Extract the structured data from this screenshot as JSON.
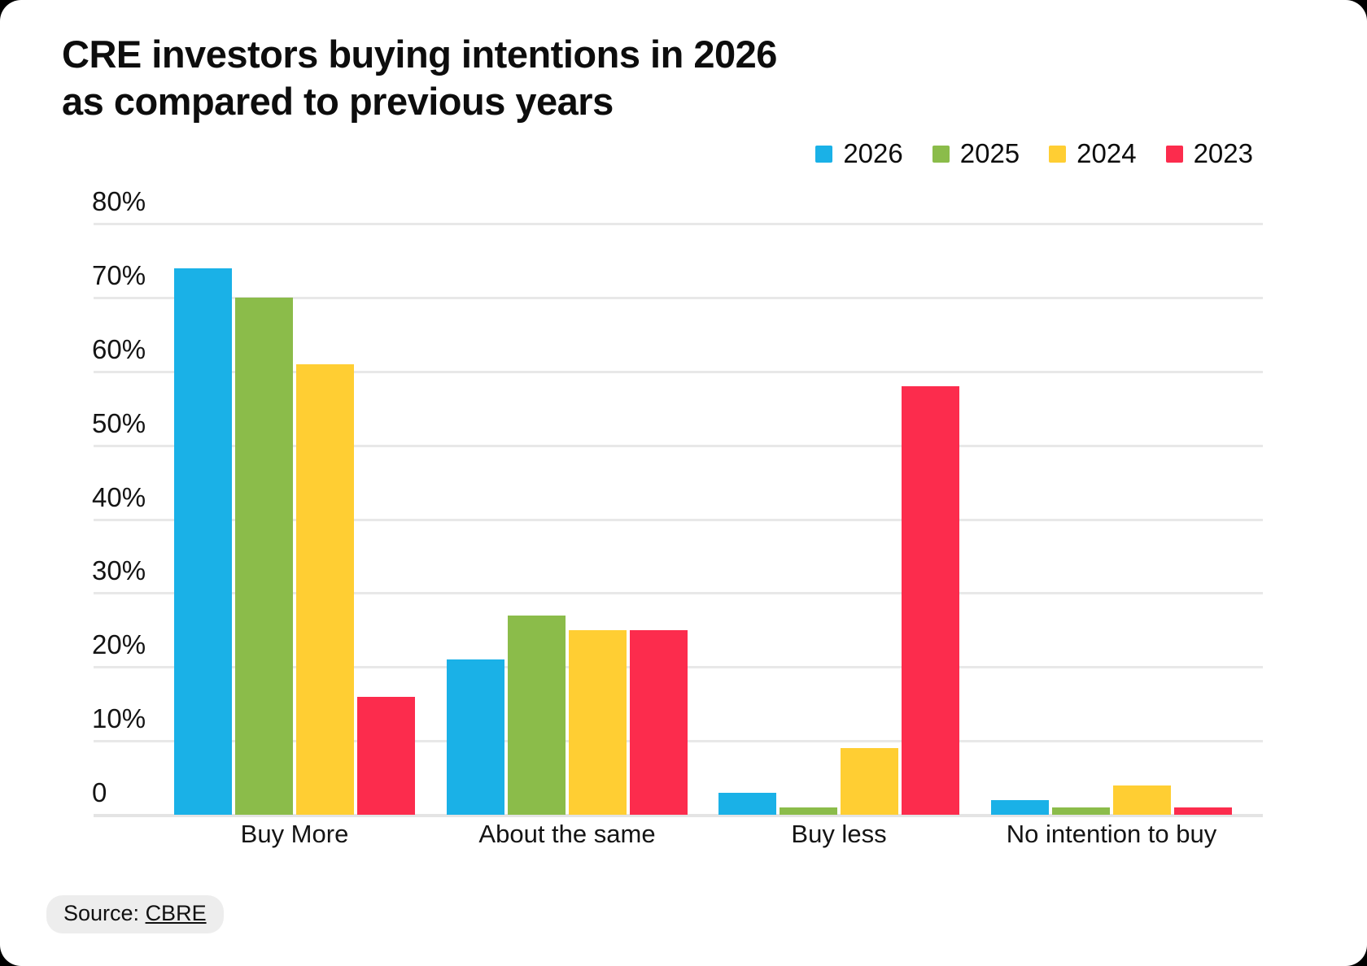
{
  "title": {
    "line1": "CRE investors buying intentions in 2026",
    "line2": "as compared to previous years"
  },
  "source": {
    "prefix": "Source: ",
    "link_label": "CBRE"
  },
  "colors": {
    "card_background": "#ffffff",
    "page_background": "#000000",
    "gridline": "#e8e8e8",
    "text": "#0d0d0d"
  },
  "chart_data": {
    "type": "bar",
    "title": "CRE investors buying intentions in 2026 as compared to previous years",
    "categories": [
      "Buy More",
      "About the same",
      "Buy less",
      "No intention to buy"
    ],
    "series": [
      {
        "name": "2026",
        "color": "#1AB1E7",
        "values": [
          74,
          21,
          3,
          2
        ]
      },
      {
        "name": "2025",
        "color": "#8BBC4A",
        "values": [
          70,
          27,
          1,
          1
        ]
      },
      {
        "name": "2024",
        "color": "#FFCE33",
        "values": [
          61,
          25,
          9,
          4
        ]
      },
      {
        "name": "2023",
        "color": "#FC2C4D",
        "values": [
          16,
          25,
          58,
          1
        ]
      }
    ],
    "xlabel": "",
    "ylabel": "",
    "ylim": [
      0,
      80
    ],
    "y_ticks": [
      "80%",
      "70%",
      "60%",
      "50%",
      "40%",
      "30%",
      "20%",
      "10%",
      "0"
    ],
    "grid": true,
    "legend_position": "top-right"
  }
}
